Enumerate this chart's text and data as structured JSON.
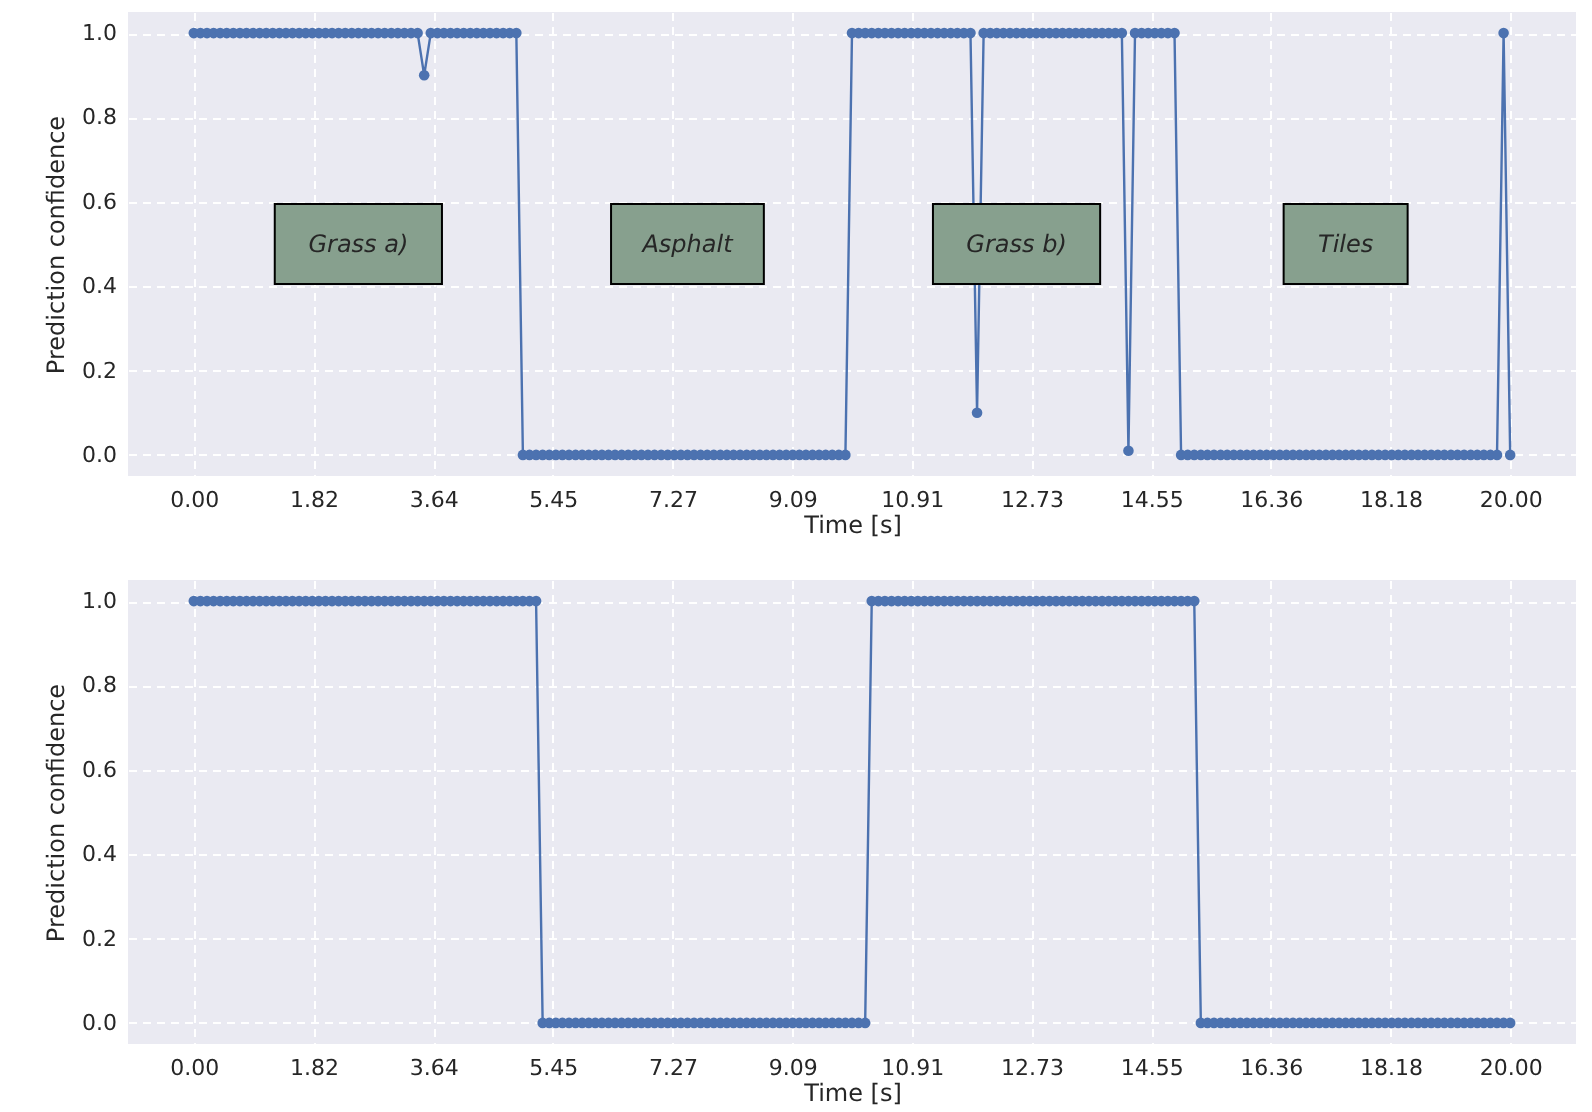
{
  "chart_data": [
    {
      "type": "line",
      "xlabel": "Time [s]",
      "ylabel": "Prediction confidence",
      "marker": "circle",
      "line_style": "solid",
      "grid": true,
      "x": [
        0.0,
        0.1,
        0.2,
        0.3,
        0.4,
        0.5,
        0.6,
        0.7,
        0.8,
        0.9,
        1.0,
        1.1,
        1.2,
        1.3,
        1.4,
        1.5,
        1.6,
        1.7,
        1.8,
        1.9,
        2.0,
        2.1,
        2.2,
        2.3,
        2.4,
        2.5,
        2.6,
        2.7,
        2.8,
        2.9,
        3.0,
        3.1,
        3.2,
        3.3,
        3.4,
        3.5,
        3.6,
        3.7,
        3.8,
        3.9,
        4.0,
        4.1,
        4.2,
        4.3,
        4.4,
        4.5,
        4.6,
        4.7,
        4.8,
        4.9,
        5.0,
        5.1,
        5.2,
        5.3,
        5.4,
        5.5,
        5.6,
        5.7,
        5.8,
        5.9,
        6.0,
        6.1,
        6.2,
        6.3,
        6.4,
        6.5,
        6.6,
        6.7,
        6.8,
        6.9,
        7.0,
        7.1,
        7.2,
        7.3,
        7.4,
        7.5,
        7.6,
        7.7,
        7.8,
        7.9,
        8.0,
        8.1,
        8.2,
        8.3,
        8.4,
        8.5,
        8.6,
        8.7,
        8.8,
        8.9,
        9.0,
        9.1,
        9.2,
        9.3,
        9.4,
        9.5,
        9.6,
        9.7,
        9.8,
        9.9,
        10.0,
        10.1,
        10.2,
        10.3,
        10.4,
        10.5,
        10.6,
        10.7,
        10.8,
        10.9,
        11.0,
        11.1,
        11.2,
        11.3,
        11.4,
        11.5,
        11.6,
        11.7,
        11.8,
        11.9,
        12.0,
        12.1,
        12.2,
        12.3,
        12.4,
        12.5,
        12.6,
        12.7,
        12.8,
        12.9,
        13.0,
        13.1,
        13.2,
        13.3,
        13.4,
        13.5,
        13.6,
        13.7,
        13.8,
        13.9,
        14.0,
        14.1,
        14.2,
        14.3,
        14.4,
        14.5,
        14.6,
        14.7,
        14.8,
        14.9,
        15.0,
        15.1,
        15.2,
        15.3,
        15.4,
        15.5,
        15.6,
        15.7,
        15.8,
        15.9,
        16.0,
        16.1,
        16.2,
        16.3,
        16.4,
        16.5,
        16.6,
        16.7,
        16.8,
        16.9,
        17.0,
        17.1,
        17.2,
        17.3,
        17.4,
        17.5,
        17.6,
        17.7,
        17.8,
        17.9,
        18.0,
        18.1,
        18.2,
        18.3,
        18.4,
        18.5,
        18.6,
        18.7,
        18.8,
        18.9,
        19.0,
        19.1,
        19.2,
        19.3,
        19.4,
        19.5,
        19.6,
        19.7,
        19.8,
        19.9,
        20.0
      ],
      "series": [
        {
          "color": "#4c72b0",
          "values": [
            1,
            1,
            1,
            1,
            1,
            1,
            1,
            1,
            1,
            1,
            1,
            1,
            1,
            1,
            1,
            1,
            1,
            1,
            1,
            1,
            1,
            1,
            1,
            1,
            1,
            1,
            1,
            1,
            1,
            1,
            1,
            1,
            1,
            1,
            1,
            0.9,
            1,
            1,
            1,
            1,
            1,
            1,
            1,
            1,
            1,
            1,
            1,
            1,
            1,
            1,
            0,
            0,
            0,
            0,
            0,
            0,
            0,
            0,
            0,
            0,
            0,
            0,
            0,
            0,
            0,
            0,
            0,
            0,
            0,
            0,
            0,
            0,
            0,
            0,
            0,
            0,
            0,
            0,
            0,
            0,
            0,
            0,
            0,
            0,
            0,
            0,
            0,
            0,
            0,
            0,
            0,
            0,
            0,
            0,
            0,
            0,
            0,
            0,
            0,
            0,
            1,
            1,
            1,
            1,
            1,
            1,
            1,
            1,
            1,
            1,
            1,
            1,
            1,
            1,
            1,
            1,
            1,
            1,
            1,
            0.1,
            1,
            1,
            1,
            1,
            1,
            1,
            1,
            1,
            1,
            1,
            1,
            1,
            1,
            1,
            1,
            1,
            1,
            1,
            1,
            1,
            1,
            1,
            0.01,
            1,
            1,
            1,
            1,
            1,
            1,
            1,
            0,
            0,
            0,
            0,
            0,
            0,
            0,
            0,
            0,
            0,
            0,
            0,
            0,
            0,
            0,
            0,
            0,
            0,
            0,
            0,
            0,
            0,
            0,
            0,
            0,
            0,
            0,
            0,
            0,
            0,
            0,
            0,
            0,
            0,
            0,
            0,
            0,
            0,
            0,
            0,
            0,
            0,
            0,
            0,
            0,
            0,
            0,
            0,
            0,
            1,
            0
          ]
        }
      ],
      "xlim": [
        -1,
        21
      ],
      "ylim": [
        -0.05,
        1.05
      ],
      "xticks": [
        {
          "value": 0,
          "label": "0.00"
        },
        {
          "value": 1.8182,
          "label": "1.82"
        },
        {
          "value": 3.6364,
          "label": "3.64"
        },
        {
          "value": 5.4545,
          "label": "5.45"
        },
        {
          "value": 7.2727,
          "label": "7.27"
        },
        {
          "value": 9.0909,
          "label": "9.09"
        },
        {
          "value": 10.9091,
          "label": "10.91"
        },
        {
          "value": 12.7273,
          "label": "12.73"
        },
        {
          "value": 14.5455,
          "label": "14.55"
        },
        {
          "value": 16.3636,
          "label": "16.36"
        },
        {
          "value": 18.1818,
          "label": "18.18"
        },
        {
          "value": 20,
          "label": "20.00"
        }
      ],
      "yticks": [
        {
          "value": 0,
          "label": "0.0"
        },
        {
          "value": 0.2,
          "label": "0.2"
        },
        {
          "value": 0.4,
          "label": "0.4"
        },
        {
          "value": 0.6,
          "label": "0.6"
        },
        {
          "value": 0.8,
          "label": "0.8"
        },
        {
          "value": 1,
          "label": "1.0"
        }
      ],
      "annotations": [
        "Grass a)",
        "Asphalt",
        "Grass b)",
        "Tiles"
      ]
    },
    {
      "type": "line",
      "xlabel": "Time [s]",
      "ylabel": "Prediction confidence",
      "marker": "circle",
      "line_style": "solid",
      "grid": true,
      "x": [
        0.0,
        0.1,
        0.2,
        0.3,
        0.4,
        0.5,
        0.6,
        0.7,
        0.8,
        0.9,
        1.0,
        1.1,
        1.2,
        1.3,
        1.4,
        1.5,
        1.6,
        1.7,
        1.8,
        1.9,
        2.0,
        2.1,
        2.2,
        2.3,
        2.4,
        2.5,
        2.6,
        2.7,
        2.8,
        2.9,
        3.0,
        3.1,
        3.2,
        3.3,
        3.4,
        3.5,
        3.6,
        3.7,
        3.8,
        3.9,
        4.0,
        4.1,
        4.2,
        4.3,
        4.4,
        4.5,
        4.6,
        4.7,
        4.8,
        4.9,
        5.0,
        5.1,
        5.2,
        5.3,
        5.4,
        5.5,
        5.6,
        5.7,
        5.8,
        5.9,
        6.0,
        6.1,
        6.2,
        6.3,
        6.4,
        6.5,
        6.6,
        6.7,
        6.8,
        6.9,
        7.0,
        7.1,
        7.2,
        7.3,
        7.4,
        7.5,
        7.6,
        7.7,
        7.8,
        7.9,
        8.0,
        8.1,
        8.2,
        8.3,
        8.4,
        8.5,
        8.6,
        8.7,
        8.8,
        8.9,
        9.0,
        9.1,
        9.2,
        9.3,
        9.4,
        9.5,
        9.6,
        9.7,
        9.8,
        9.9,
        10.0,
        10.1,
        10.2,
        10.3,
        10.4,
        10.5,
        10.6,
        10.7,
        10.8,
        10.9,
        11.0,
        11.1,
        11.2,
        11.3,
        11.4,
        11.5,
        11.6,
        11.7,
        11.8,
        11.9,
        12.0,
        12.1,
        12.2,
        12.3,
        12.4,
        12.5,
        12.6,
        12.7,
        12.8,
        12.9,
        13.0,
        13.1,
        13.2,
        13.3,
        13.4,
        13.5,
        13.6,
        13.7,
        13.8,
        13.9,
        14.0,
        14.1,
        14.2,
        14.3,
        14.4,
        14.5,
        14.6,
        14.7,
        14.8,
        14.9,
        15.0,
        15.1,
        15.2,
        15.3,
        15.4,
        15.5,
        15.6,
        15.7,
        15.8,
        15.9,
        16.0,
        16.1,
        16.2,
        16.3,
        16.4,
        16.5,
        16.6,
        16.7,
        16.8,
        16.9,
        17.0,
        17.1,
        17.2,
        17.3,
        17.4,
        17.5,
        17.6,
        17.7,
        17.8,
        17.9,
        18.0,
        18.1,
        18.2,
        18.3,
        18.4,
        18.5,
        18.6,
        18.7,
        18.8,
        18.9,
        19.0,
        19.1,
        19.2,
        19.3,
        19.4,
        19.5,
        19.6,
        19.7,
        19.8,
        19.9,
        20.0
      ],
      "series": [
        {
          "color": "#4c72b0",
          "values": [
            1,
            1,
            1,
            1,
            1,
            1,
            1,
            1,
            1,
            1,
            1,
            1,
            1,
            1,
            1,
            1,
            1,
            1,
            1,
            1,
            1,
            1,
            1,
            1,
            1,
            1,
            1,
            1,
            1,
            1,
            1,
            1,
            1,
            1,
            1,
            1,
            1,
            1,
            1,
            1,
            1,
            1,
            1,
            1,
            1,
            1,
            1,
            1,
            1,
            1,
            1,
            1,
            1,
            0,
            0,
            0,
            0,
            0,
            0,
            0,
            0,
            0,
            0,
            0,
            0,
            0,
            0,
            0,
            0,
            0,
            0,
            0,
            0,
            0,
            0,
            0,
            0,
            0,
            0,
            0,
            0,
            0,
            0,
            0,
            0,
            0,
            0,
            0,
            0,
            0,
            0,
            0,
            0,
            0,
            0,
            0,
            0,
            0,
            0,
            0,
            0,
            0,
            0,
            1,
            1,
            1,
            1,
            1,
            1,
            1,
            1,
            1,
            1,
            1,
            1,
            1,
            1,
            1,
            1,
            1,
            1,
            1,
            1,
            1,
            1,
            1,
            1,
            1,
            1,
            1,
            1,
            1,
            1,
            1,
            1,
            1,
            1,
            1,
            1,
            1,
            1,
            1,
            1,
            1,
            1,
            1,
            1,
            1,
            1,
            1,
            1,
            1,
            1,
            0,
            0,
            0,
            0,
            0,
            0,
            0,
            0,
            0,
            0,
            0,
            0,
            0,
            0,
            0,
            0,
            0,
            0,
            0,
            0,
            0,
            0,
            0,
            0,
            0,
            0,
            0,
            0,
            0,
            0,
            0,
            0,
            0,
            0,
            0,
            0,
            0,
            0,
            0,
            0,
            0,
            0,
            0,
            0,
            0,
            0,
            0,
            0
          ]
        }
      ],
      "xlim": [
        -1,
        21
      ],
      "ylim": [
        -0.05,
        1.05
      ],
      "xticks": [
        {
          "value": 0,
          "label": "0.00"
        },
        {
          "value": 1.8182,
          "label": "1.82"
        },
        {
          "value": 3.6364,
          "label": "3.64"
        },
        {
          "value": 5.4545,
          "label": "5.45"
        },
        {
          "value": 7.2727,
          "label": "7.27"
        },
        {
          "value": 9.0909,
          "label": "9.09"
        },
        {
          "value": 10.9091,
          "label": "10.91"
        },
        {
          "value": 12.7273,
          "label": "12.73"
        },
        {
          "value": 14.5455,
          "label": "14.55"
        },
        {
          "value": 16.3636,
          "label": "16.36"
        },
        {
          "value": 18.1818,
          "label": "18.18"
        },
        {
          "value": 20,
          "label": "20.00"
        }
      ],
      "yticks": [
        {
          "value": 0,
          "label": "0.0"
        },
        {
          "value": 0.2,
          "label": "0.2"
        },
        {
          "value": 0.4,
          "label": "0.4"
        },
        {
          "value": 0.6,
          "label": "0.6"
        },
        {
          "value": 0.8,
          "label": "0.8"
        },
        {
          "value": 1,
          "label": "1.0"
        }
      ]
    }
  ]
}
